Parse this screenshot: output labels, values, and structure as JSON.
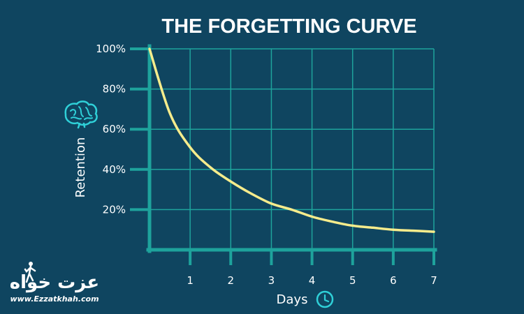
{
  "colors": {
    "background": "#0f4560",
    "grid": "#1ea39c",
    "axis": "#1ea39c",
    "curve": "#f6ec8c",
    "text": "#ffffff",
    "icon": "#2fd0d8"
  },
  "icons": [
    "brain-icon",
    "clock-icon",
    "hiker-icon"
  ],
  "logo": {
    "text": "عزت خواه",
    "url": "www.Ezzatkhah.com"
  },
  "chart_data": {
    "type": "line",
    "title": "THE FORGETTING CURVE",
    "xlabel": "Days",
    "ylabel": "Retention",
    "xlim": [
      0,
      7
    ],
    "ylim": [
      0,
      100
    ],
    "x_ticks": [
      "1",
      "2",
      "3",
      "4",
      "5",
      "6",
      "7"
    ],
    "y_ticks": [
      "20%",
      "40%",
      "60%",
      "80%",
      "100%"
    ],
    "grid": true,
    "legend": "none",
    "series": [
      {
        "x": [
          0,
          0.5,
          1,
          1.5,
          2,
          2.5,
          3,
          3.5,
          4,
          4.5,
          5,
          5.5,
          6,
          6.5,
          7
        ],
        "values": [
          100,
          68,
          51,
          41,
          34,
          28,
          23,
          20,
          16.5,
          14,
          12,
          11,
          10,
          9.5,
          9
        ]
      }
    ]
  }
}
